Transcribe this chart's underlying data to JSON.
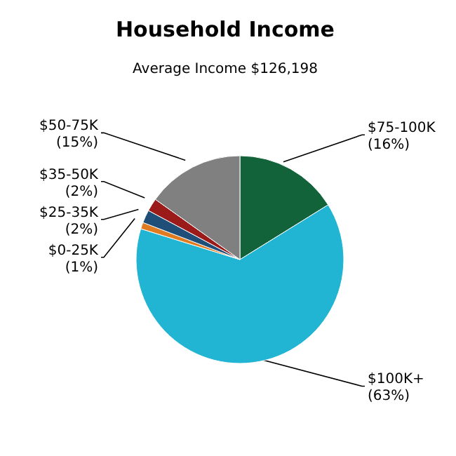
{
  "chart_data": {
    "type": "pie",
    "title": "Household Income",
    "subtitle": "Average Income  $126,198",
    "categories": [
      "$75-100K",
      "$100K+",
      "$0-25K",
      "$25-35K",
      "$35-50K",
      "$50-75K"
    ],
    "values": [
      16,
      63,
      1,
      2,
      2,
      15
    ],
    "value_labels": [
      "(16%)",
      "(63%)",
      "(1%)",
      "(2%)",
      "(2%)",
      "(15%)"
    ],
    "colors": [
      "#12633a",
      "#22b5d3",
      "#e07b20",
      "#1f4e79",
      "#9b1b1b",
      "#808080"
    ],
    "legend": false
  }
}
